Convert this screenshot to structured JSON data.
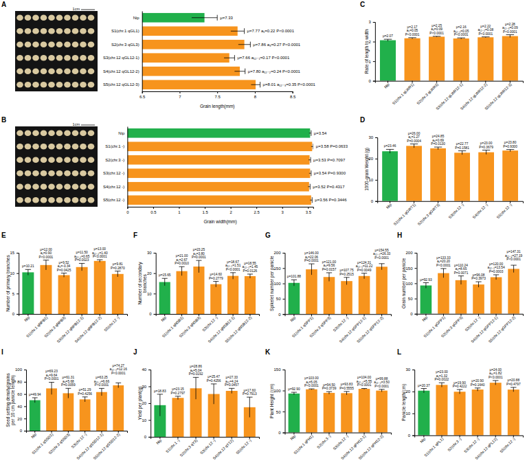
{
  "chart_data": [
    {
      "type": "bar",
      "orientation": "horizontal",
      "label": "A",
      "photo_label": "1cm",
      "x_label": "Grain length(mm)",
      "categories": [
        "Nip",
        "S1(chr.1 qGL1)",
        "S2(chr.3 qGL3)",
        "S3(chr.12 qGL12-1)",
        "S4(chr.12 qGL12-2)",
        "S5(chr.12 qGL12-3)"
      ],
      "values": [
        7.33,
        7.77,
        7.86,
        7.66,
        7.8,
        8.01
      ],
      "errors": [
        0.17,
        0.09,
        0.08,
        0.07,
        0.07,
        0.06
      ],
      "colors": [
        "#21b04b",
        "#f7941d",
        "#f7941d",
        "#f7941d",
        "#f7941d",
        "#f7941d"
      ],
      "xlim": [
        6.5,
        8.5
      ],
      "xticks": [
        6.5,
        7,
        7.5,
        8,
        8.5
      ],
      "annotations": [
        [
          "μ=7.33"
        ],
        [
          "μ=7.77 a₁=0.22 P<0.0001"
        ],
        [
          "μ=7.86 a₃=0.27 P<0.0001"
        ],
        [
          "μ=7.66 a₁₂₋₁=0.17 P<0.0001"
        ],
        [
          "μ=7.80 a₁₂₋₂=0.24 P<0.0001"
        ],
        [
          "μ=8.01 a₁₂₋₃=0.35 P<0.0001"
        ]
      ]
    },
    {
      "type": "bar",
      "orientation": "horizontal",
      "label": "B",
      "photo_label": "1cm",
      "x_label": "Grain width(mm)",
      "categories": [
        "Nip",
        "S1(chr.1 -)",
        "S2(chr.3 -)",
        "S3(chr.12 -)",
        "S4(chr.12 -)",
        "S5(chr.12 -)"
      ],
      "values": [
        3.54,
        3.58,
        3.53,
        3.54,
        3.52,
        3.56
      ],
      "errors": [
        0.02,
        0.02,
        0.02,
        0.02,
        0.02,
        0.02
      ],
      "colors": [
        "#21b04b",
        "#f7941d",
        "#f7941d",
        "#f7941d",
        "#f7941d",
        "#f7941d"
      ],
      "xlim": [
        0,
        3.6
      ],
      "xticks": [
        0,
        0.5,
        1,
        1.5,
        2,
        2.5,
        3,
        3.5
      ],
      "annotations": [
        [
          "μ=3.54"
        ],
        [
          "μ=3.58 P=0.0633"
        ],
        [
          "μ=3.53 P=0.7097"
        ],
        [
          "μ=3.54 P=0.9300"
        ],
        [
          "μ=3.52 P=0.4317"
        ],
        [
          "μ=3.56 P=0.3446"
        ]
      ]
    },
    {
      "type": "bar",
      "label": "C",
      "y_label": "Rate of length to width",
      "categories": [
        "Nip",
        "S1(chr.1 qLWR1)",
        "S2(chr.3 qLWR3)",
        "S3(chr.12 qLWR12-1)",
        "S4(chr.12 qLWR12-2)",
        "S5(chr.12 qLWR12-3)"
      ],
      "values": [
        2.07,
        2.17,
        2.25,
        2.16,
        2.22,
        2.28
      ],
      "errors": [
        0.05,
        0.03,
        0.02,
        0.03,
        0.02,
        0.07
      ],
      "colors": [
        "#21b04b",
        "#f7941d",
        "#f7941d",
        "#f7941d",
        "#f7941d",
        "#f7941d"
      ],
      "ylim": [
        0,
        3
      ],
      "yticks": [
        0,
        1,
        2,
        3
      ],
      "annotations": [
        [
          "μ=2.07"
        ],
        [
          "μ=2.17",
          "a₁=0.05",
          "P<0.0001"
        ],
        [
          "μ=2.25",
          "a₃=0.09",
          "P<0.0001"
        ],
        [
          "μ=2.16",
          "a₁₂₋₁=0.05",
          "P<0.0001"
        ],
        [
          "μ=2.22",
          "a₁₂₋₂=0.08",
          "P<0.0001"
        ],
        [
          "μ=2.28",
          "a₁₂₋₃=0.09",
          "P<0.0001"
        ]
      ]
    },
    {
      "type": "bar",
      "label": "D",
      "y_label": "1000-grain Weight (g)",
      "categories": [
        "Nip",
        "S1(chr.1 qGWT1)",
        "S2(chr.3 qGWT3)",
        "S3(chr.12 -)",
        "S4(chr.12 -)",
        "S5(chr.12 -)"
      ],
      "values": [
        23.46,
        26.0,
        24.85,
        22.77,
        23.0,
        23.8
      ],
      "errors": [
        0.9,
        0.9,
        0.6,
        0.9,
        1.0,
        0.5
      ],
      "colors": [
        "#21b04b",
        "#f7941d",
        "#f7941d",
        "#f7941d",
        "#f7941d",
        "#f7941d"
      ],
      "ylim": [
        0,
        30
      ],
      "yticks": [
        0,
        10,
        20,
        30
      ],
      "annotations": [
        [
          "μ=23.46"
        ],
        [
          "μ=26.00",
          "a₁=1.27",
          "P=0.0004"
        ],
        [
          "μ=24.85",
          "a₃=0.69",
          "P=0.0130"
        ],
        [
          "μ=22.77",
          "P=0.1581"
        ],
        [
          "μ=23.00",
          "P=0.3679"
        ],
        [
          "μ=23.80",
          "P=0.9300"
        ]
      ]
    },
    {
      "type": "bar",
      "label": "E",
      "y_label": "Number of primary branches",
      "categories": [
        "Nip",
        "S1(chr.1 qNPB1)",
        "S2(chr.3 qNPB3)",
        "S3(chr.12 qNPB12-1)",
        "S4(chr.12 qNPB12-2)",
        "S5(chr.12 -)"
      ],
      "values": [
        10.21,
        12.0,
        9.52,
        11.5,
        13.0,
        9.81
      ],
      "errors": [
        0.7,
        1.2,
        0.5,
        0.9,
        0.3,
        0.7
      ],
      "colors": [
        "#21b04b",
        "#f7941d",
        "#f7941d",
        "#f7941d",
        "#f7941d",
        "#f7941d"
      ],
      "ylim": [
        0,
        15
      ],
      "yticks": [
        0,
        5,
        10,
        15
      ],
      "annotations": [
        [
          "μ=10.21"
        ],
        [
          "μ=12.00",
          "a₁=0.90",
          "P<0.0001"
        ],
        [
          "μ=9.52",
          "a₃=-0.34",
          "P=0.0425"
        ],
        [
          "μ=11.50",
          "a₁₂₋₁=0.65",
          "P=0.0023"
        ],
        [
          "μ=13.00",
          "a₁₂₋₂=1.40",
          "P<0.0001"
        ],
        [
          "μ=9.81",
          "P=0.2870"
        ]
      ]
    },
    {
      "type": "bar",
      "label": "F",
      "y_label": "Number of secondary branches",
      "categories": [
        "Nip",
        "S1(chr.1 qNSB1)",
        "S2(chr.3 qNSB3)",
        "S3(chr.12 -)",
        "S4(chr.12 qNSB12-1)",
        "S5(chr.12 qNSB12-2)"
      ],
      "values": [
        15.65,
        21.0,
        23.25,
        14.6,
        18.67,
        18.55
      ],
      "errors": [
        1.8,
        2.2,
        3.0,
        1.4,
        1.6,
        1.0
      ],
      "colors": [
        "#21b04b",
        "#f7941d",
        "#f7941d",
        "#f7941d",
        "#f7941d",
        "#f7941d"
      ],
      "ylim": [
        0,
        30
      ],
      "yticks": [
        0,
        10,
        20,
        30
      ],
      "annotations": [
        [
          "μ=15.65"
        ],
        [
          "μ=21.00",
          "a₁=2.67",
          "P=0.0010"
        ],
        [
          "μ=23.25",
          "a₃=3.80",
          "P=0.0001"
        ],
        [
          "μ=14.60",
          "P=0.2779"
        ],
        [
          "μ=18.67",
          "a₁₂₋₁=1.51",
          "P<0.0001"
        ],
        [
          "μ=18.55",
          "a₁₂₋₂=1.45",
          "P=0.0126"
        ]
      ]
    },
    {
      "type": "bar",
      "label": "G",
      "y_label": "Spikelet number per panicle",
      "categories": [
        "Nip",
        "S1(chr.1 qSPP1)",
        "S2(chr.3 qSPP3)",
        "S3(chr.12 -)",
        "S4(chr.12 qSPP12-1)",
        "S5(chr.12 qSPP12-2)"
      ],
      "values": [
        101.88,
        146.0,
        121.0,
        107.75,
        124.31,
        154.55
      ],
      "errors": [
        10,
        18,
        14,
        12,
        9,
        10
      ],
      "colors": [
        "#21b04b",
        "#f7941d",
        "#f7941d",
        "#f7941d",
        "#f7941d",
        "#f7941d"
      ],
      "ylim": [
        0,
        200
      ],
      "yticks": [
        0,
        50,
        100,
        150,
        200
      ],
      "annotations": [
        [
          "μ=101.88"
        ],
        [
          "μ=146.00",
          "a₁=22.06",
          "P=0.0001"
        ],
        [
          "μ=121.00",
          "a₃=9.56",
          "P=0.0157"
        ],
        [
          "μ=107.75",
          "P=0.2515"
        ],
        [
          "μ=124.31",
          "a₁₂₋₁=11.22",
          "P=0.0049"
        ],
        [
          "μ=154.55",
          "a₁₂₋₂=26.33",
          "P<0.0001"
        ]
      ]
    },
    {
      "type": "bar",
      "label": "H",
      "y_label": "Grain number per panicle",
      "categories": [
        "Nip",
        "S1(chr.1 qGPP1)",
        "S2(chr.3 qGPP3)",
        "S3(chr.12 -)",
        "S4(chr.12 qGPP12-1)",
        "S5(chr.12 qGPP12-2)"
      ],
      "values": [
        92.93,
        133.33,
        110.24,
        96.08,
        120.0,
        147.31
      ],
      "errors": [
        9,
        15,
        14,
        9,
        8,
        12
      ],
      "colors": [
        "#21b04b",
        "#f7941d",
        "#f7941d",
        "#f7941d",
        "#f7941d",
        "#f7941d"
      ],
      "ylim": [
        0,
        200
      ],
      "yticks": [
        0,
        50,
        100,
        150,
        200
      ],
      "annotations": [
        [
          "μ=92.93"
        ],
        [
          "μ=133.33",
          "a₁=20.20",
          "P<0.0001"
        ],
        [
          "μ=110.24",
          "a₃=8.65",
          "P=0.0071"
        ],
        [
          "μ=96.08",
          "P=0.3973"
        ],
        [
          "μ=120.00",
          "a₁₂₋₁=13.54",
          "P=0.0003"
        ],
        [
          "μ=147.31",
          "a₁₂₋₂=27.19",
          "P<0.0001"
        ]
      ]
    },
    {
      "type": "bar",
      "label": "I",
      "y_label": "Seed setting density(grains per 10 cm panicle length)",
      "categories": [
        "Nip",
        "S1(chr.1 qSSD1)",
        "S2(chr.3 qSSD3)",
        "S3(chr.12 -)",
        "S4(chr.12 qSSD12-1)",
        "S5(chr.12 qSSD12-2)"
      ],
      "values": [
        49.94,
        69.23,
        61.31,
        51.29,
        63.25,
        74.27
      ],
      "errors": [
        4,
        10,
        8,
        4,
        6,
        4
      ],
      "colors": [
        "#21b04b",
        "#f7941d",
        "#f7941d",
        "#f7941d",
        "#f7941d",
        "#f7941d"
      ],
      "ylim": [
        0,
        100
      ],
      "yticks": [
        0,
        20,
        40,
        60,
        80,
        100
      ],
      "annotations": [
        [
          "μ=49.94"
        ],
        [
          "μ=69.23",
          "a₁=9.64",
          "P<0.0001"
        ],
        [
          "μ=61.31",
          "a₃=5.68",
          "P=0.0059"
        ],
        [
          "μ=51.29",
          "P=0.4256"
        ],
        [
          "μ=63.25",
          "a₁₂₋₁=6.66",
          "P<0.0001"
        ],
        [
          "μ=74.27",
          "a₁₂₋₂=12.16",
          "P<0.0001"
        ]
      ]
    },
    {
      "type": "bar",
      "label": "J",
      "y_label": "Yield per plant(g)",
      "categories": [
        "Nip",
        "S1(chr.1 -)",
        "S2(chr.3 qY3)",
        "S3(chr.12 -)",
        "S4(chr.12 qY12)",
        "S5(chr.12 -)"
      ],
      "values": [
        18.83,
        23.15,
        28.86,
        25.47,
        27.33,
        17.6
      ],
      "errors": [
        6.5,
        1,
        6.5,
        6,
        1.5,
        6
      ],
      "colors": [
        "#21b04b",
        "#f7941d",
        "#f7941d",
        "#f7941d",
        "#f7941d",
        "#f7941d"
      ],
      "ylim": [
        0,
        40
      ],
      "yticks": [
        0,
        10,
        20,
        30,
        40
      ],
      "annotations": [
        [
          "μ=18.83"
        ],
        [
          "μ=23.15",
          "P=0.2797"
        ],
        [
          "μ=28.86",
          "a₃=5.04",
          "P=0.0192"
        ],
        [
          "μ=25.47",
          "P=0.4256"
        ],
        [
          "μ=27.33",
          "a₁₂=4.24",
          "P=0.0457"
        ],
        [
          "μ=17.60",
          "P=0.7913"
        ]
      ]
    },
    {
      "type": "bar",
      "label": "K",
      "y_label": "Plant Height (cm)",
      "categories": [
        "Nip",
        "S1(chr.1 qPH1)",
        "S2(chr.3 -)",
        "S3(chr.12 -)",
        "S4(chr.12 qPH12-1)",
        "S5(chr.12 qPH12-2)"
      ],
      "values": [
        92.9,
        103.0,
        94.5,
        93.83,
        104.0,
        99.88
      ],
      "errors": [
        3,
        1,
        3,
        4,
        1,
        3
      ],
      "colors": [
        "#21b04b",
        "#f7941d",
        "#f7941d",
        "#f7941d",
        "#f7941d",
        "#f7941d"
      ],
      "ylim": [
        0,
        150
      ],
      "yticks": [
        0,
        50,
        100,
        150
      ],
      "annotations": [
        [
          "μ=92.90"
        ],
        [
          "μ=103.00",
          "a₁=5.05",
          "P<0.0001"
        ],
        [
          "μ=94.50",
          "P=0.3739"
        ],
        [
          "μ=93.83",
          "P=0.5555"
        ],
        [
          "μ=104.00",
          "a₁₂₋₁=5.55",
          "P<0.0001"
        ],
        [
          "μ=99.88",
          "a₁₂₋₂=3.50",
          "P<0.0001"
        ]
      ]
    },
    {
      "type": "bar",
      "label": "L",
      "y_label": "Panicle length(cm)",
      "categories": [
        "Nip",
        "S1(chr.1 qPL1)",
        "S2(chr.3 -)",
        "S3(chr.12 -)",
        "S4(chr.12 qPL12)",
        "S5(chr.12 -)"
      ],
      "values": [
        20.37,
        23.0,
        19.9,
        20.9,
        24.0,
        20.88
      ],
      "errors": [
        1,
        1,
        1,
        0.7,
        1,
        1
      ],
      "colors": [
        "#21b04b",
        "#f7941d",
        "#f7941d",
        "#f7941d",
        "#f7941d",
        "#f7941d"
      ],
      "ylim": [
        0,
        30
      ],
      "yticks": [
        0,
        10,
        20,
        30
      ],
      "annotations": [
        [
          "μ=20.37"
        ],
        [
          "μ=23.00",
          "a₁=1.32",
          "P=0.0022"
        ],
        [
          "μ=19.90",
          "P=0.4222"
        ],
        [
          "μ=20.90",
          "P=0.1640"
        ],
        [
          "μ=24.00",
          "a₁₂=1.82",
          "P<0.0001"
        ],
        [
          "μ=20.88",
          "P=0.4797"
        ]
      ]
    }
  ]
}
